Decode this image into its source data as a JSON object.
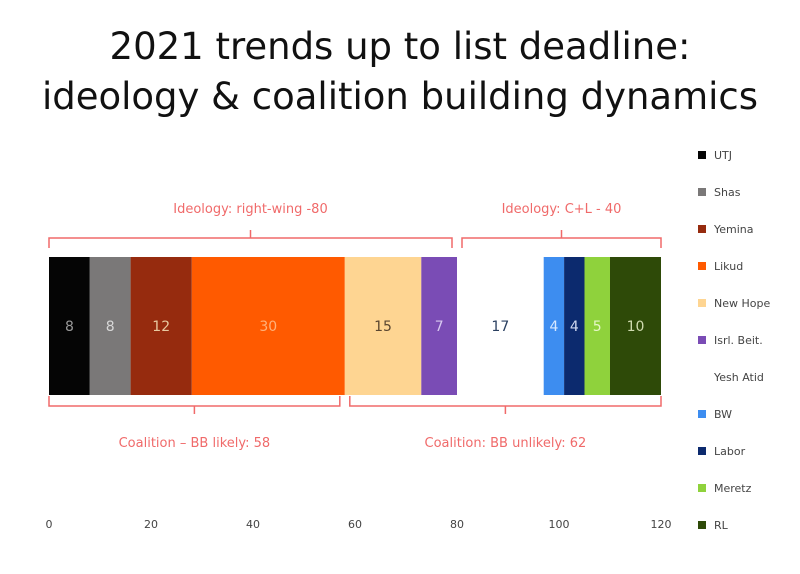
{
  "title_lines": [
    "2021 trends up to list deadline:",
    "ideology & coalition building dynamics"
  ],
  "chart_data": {
    "type": "bar",
    "orientation": "horizontal",
    "stacked": true,
    "title": "2021 trends up to list deadline: ideology & coalition building dynamics",
    "xlim": [
      0,
      120
    ],
    "x_ticks": [
      0,
      20,
      40,
      60,
      80,
      100,
      120
    ],
    "grid": false,
    "legend_position": "right",
    "series": [
      {
        "name": "UTJ",
        "value": 8,
        "color": "#050505",
        "label_color": "#9a9a9a"
      },
      {
        "name": "Shas",
        "value": 8,
        "color": "#7a7878",
        "label_color": "#d8d8d8"
      },
      {
        "name": "Yemina",
        "value": 12,
        "color": "#962b0e",
        "label_color": "#e8c9a0"
      },
      {
        "name": "Likud",
        "value": 30,
        "color": "#ff5a00",
        "label_color": "#ffb27a"
      },
      {
        "name": "New Hope",
        "value": 15,
        "color": "#fed592",
        "label_color": "#5a4630"
      },
      {
        "name": "Isrl. Beit.",
        "value": 7,
        "color": "#7a4cb5",
        "label_color": "#d8c9f0"
      },
      {
        "name": "Yesh Atid",
        "value": 17,
        "color": "#ffffff",
        "label_color": "#2a3f60"
      },
      {
        "name": "BW",
        "value": 4,
        "color": "#3d8df0",
        "label_color": "#d6e8ff"
      },
      {
        "name": "Labor",
        "value": 4,
        "color": "#0c2a6e",
        "label_color": "#d0d8f0"
      },
      {
        "name": "Meretz",
        "value": 5,
        "color": "#8fd23c",
        "label_color": "#e6f6c8"
      },
      {
        "name": "RL",
        "value": 10,
        "color": "#2e4a08",
        "label_color": "#d0dcb0"
      }
    ],
    "annotations": [
      {
        "text": "Ideology: right-wing -80",
        "position": "above",
        "from": 0,
        "to": 80
      },
      {
        "text": "Ideology: C+L - 40",
        "position": "above",
        "from": 80,
        "to": 120
      },
      {
        "text": "Coalition – BB likely: 58",
        "position": "below",
        "from": 0,
        "to": 58
      },
      {
        "text": "Coalition: BB unlikely: 62",
        "position": "below",
        "from": 58,
        "to": 120
      }
    ],
    "annotation_color": "#f06a6a"
  }
}
